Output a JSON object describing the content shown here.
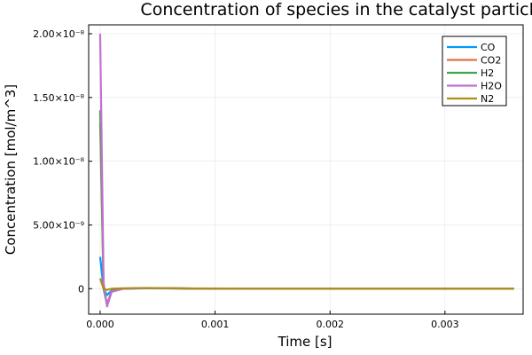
{
  "chart_data": {
    "type": "line",
    "title": "Concentration of species in the catalyst particle",
    "xlabel": "Time [s]",
    "ylabel": "Concentration [mol/m^3]",
    "xlim": [
      -0.0001,
      0.00368
    ],
    "ylim": [
      -2e-09,
      2.07e-08
    ],
    "x_ticks": [
      {
        "value": 0,
        "label": "0.000"
      },
      {
        "value": 0.001,
        "label": "0.001"
      },
      {
        "value": 0.002,
        "label": "0.002"
      },
      {
        "value": 0.003,
        "label": "0.003"
      }
    ],
    "y_ticks": [
      {
        "value": 0,
        "label": "0"
      },
      {
        "value": 5e-09,
        "label": "5.00×10⁻⁹"
      },
      {
        "value": 1e-08,
        "label": "1.00×10⁻⁸"
      },
      {
        "value": 1.5e-08,
        "label": "1.50×10⁻⁸"
      },
      {
        "value": 2e-08,
        "label": "2.00×10⁻⁸"
      }
    ],
    "grid": true,
    "legend_position": "top-right",
    "series": [
      {
        "name": "CO",
        "color": "#009AFA",
        "x": [
          0,
          3e-05,
          6e-05,
          0.0001,
          0.0002,
          0.0004,
          0.0008,
          0.0015,
          0.0025,
          0.0036
        ],
        "y": [
          2.5e-09,
          0,
          -5e-10,
          -1.5e-10,
          0,
          3e-11,
          1e-11,
          0,
          0,
          0
        ]
      },
      {
        "name": "CO2",
        "color": "#E36F47",
        "x": [
          0,
          3e-05,
          6e-05,
          0.0001,
          0.0002,
          0.0004,
          0.0008,
          0.0015,
          0.0025,
          0.0036
        ],
        "y": [
          1.3e-08,
          0,
          -1.2e-09,
          -2e-10,
          0,
          4e-11,
          1e-11,
          0,
          0,
          0
        ]
      },
      {
        "name": "H2",
        "color": "#3EA44E",
        "x": [
          0,
          3e-05,
          6e-05,
          0.0001,
          0.0002,
          0.0004,
          0.0008,
          0.0015,
          0.0025,
          0.0036
        ],
        "y": [
          1.4e-08,
          0,
          -1.3e-09,
          -2e-10,
          0,
          4e-11,
          1e-11,
          0,
          0,
          0
        ]
      },
      {
        "name": "H2O",
        "color": "#C271D2",
        "x": [
          0,
          3e-05,
          6e-05,
          0.0001,
          0.0002,
          0.0004,
          0.0008,
          0.0015,
          0.0025,
          0.0036
        ],
        "y": [
          2e-08,
          5e-10,
          -1.4e-09,
          -2.5e-10,
          0,
          5e-11,
          1.5e-11,
          0,
          0,
          0
        ]
      },
      {
        "name": "N2",
        "color": "#AC8E18",
        "x": [
          0,
          3e-05,
          6e-05,
          0.0001,
          0.0002,
          0.0004,
          0.0008,
          0.0015,
          0.0025,
          0.0036
        ],
        "y": [
          8e-10,
          0,
          -1e-10,
          0,
          3e-11,
          6e-11,
          2e-11,
          0,
          0,
          0
        ]
      }
    ]
  }
}
